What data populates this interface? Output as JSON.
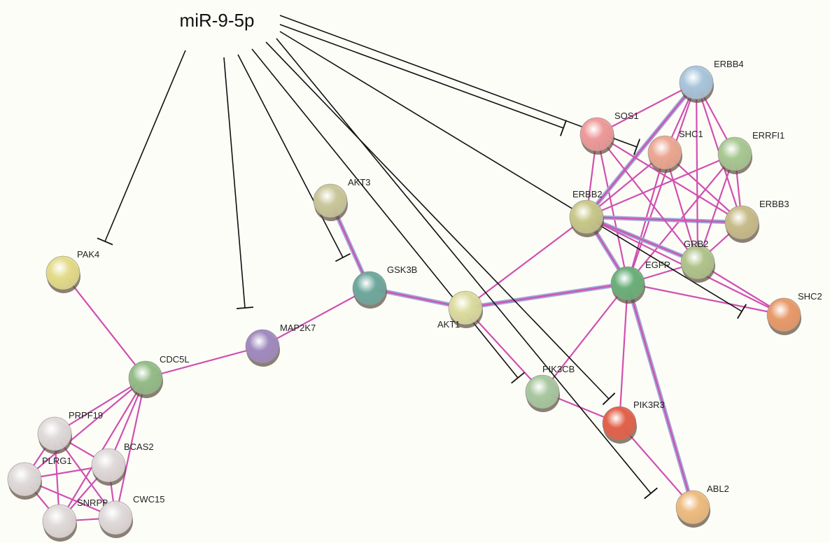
{
  "mirna": "miR-9-5p",
  "nodes": [
    "ERBB4",
    "SOS1",
    "SHC1",
    "ERRFI1",
    "AKT3",
    "ERBB2",
    "ERBB3",
    "GRB2",
    "PAK4",
    "GSK3B",
    "EGFR",
    "AKT1",
    "SHC2",
    "MAP2K7",
    "CDC5L",
    "PIK3CB",
    "PIK3R3",
    "PRPF19",
    "BCAS2",
    "PLRG1",
    "SNRPB",
    "CWC15",
    "ABL2"
  ]
}
